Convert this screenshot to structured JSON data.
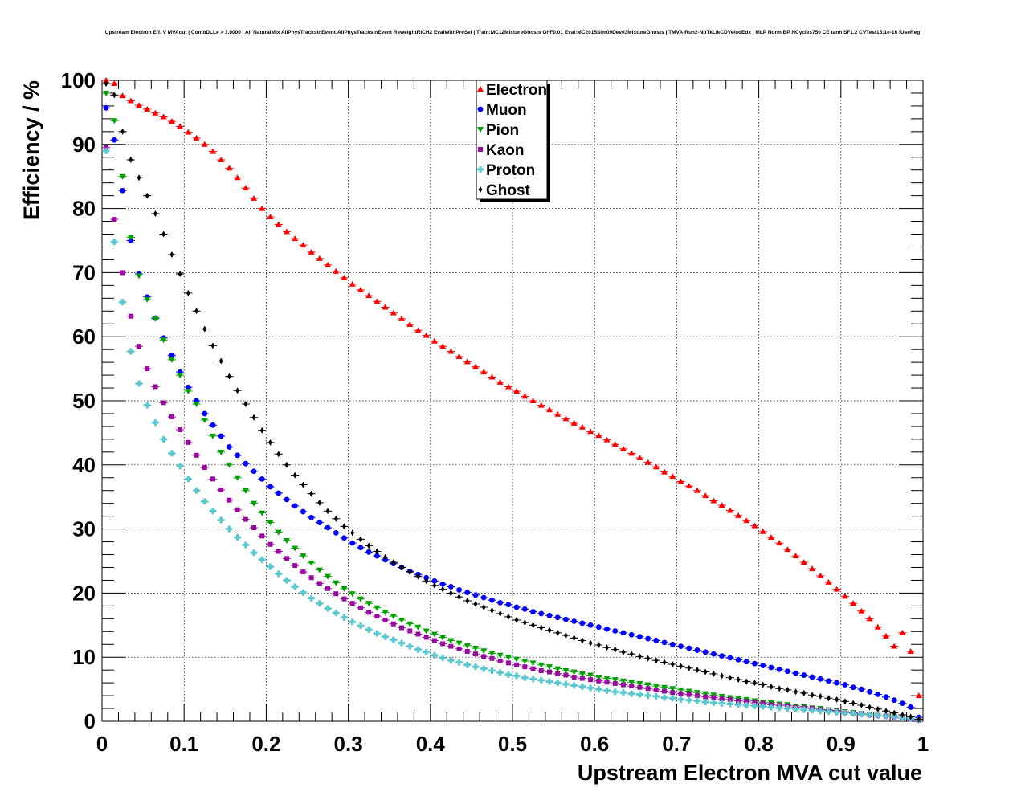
{
  "chart_data": {
    "type": "scatter",
    "title": "Upstream Electron Eff. V MVAcut | CombDLLe > 1.0000 | All NaturalMix AllPhysTracksInEvent:AllPhysTracksInEvent ReweightRICH2 EvalWithPreSel | Train:MC12MixtureGhosts GhF0.01 Eval:MC2015Sim09Dev03MixtureGhosts | TMVA-Run2-NoTkLikCDVelodEdx | MLP Norm BP NCycles750 CE tanh SF1.2 CVTest15:1e-16 !UseReg",
    "xlabel": "Upstream Electron MVA cut value",
    "ylabel": "Efficiency / %",
    "xlim": [
      0,
      1
    ],
    "ylim": [
      0,
      100
    ],
    "grid": true,
    "legend_position": "top-center",
    "x_ticks": [
      "0",
      "0.1",
      "0.2",
      "0.3",
      "0.4",
      "0.5",
      "0.6",
      "0.7",
      "0.8",
      "0.9",
      "1"
    ],
    "y_ticks": [
      "0",
      "10",
      "20",
      "30",
      "40",
      "50",
      "60",
      "70",
      "80",
      "90",
      "100"
    ],
    "x": [
      0.005,
      0.015,
      0.025,
      0.035,
      0.045,
      0.055,
      0.065,
      0.075,
      0.085,
      0.095,
      0.105,
      0.115,
      0.125,
      0.135,
      0.145,
      0.155,
      0.165,
      0.175,
      0.185,
      0.195,
      0.205,
      0.215,
      0.225,
      0.235,
      0.245,
      0.255,
      0.265,
      0.275,
      0.285,
      0.295,
      0.305,
      0.315,
      0.325,
      0.335,
      0.345,
      0.355,
      0.365,
      0.375,
      0.385,
      0.395,
      0.405,
      0.415,
      0.425,
      0.435,
      0.445,
      0.455,
      0.465,
      0.475,
      0.485,
      0.495,
      0.505,
      0.515,
      0.525,
      0.535,
      0.545,
      0.555,
      0.565,
      0.575,
      0.585,
      0.595,
      0.605,
      0.615,
      0.625,
      0.635,
      0.645,
      0.655,
      0.665,
      0.675,
      0.685,
      0.695,
      0.705,
      0.715,
      0.725,
      0.735,
      0.745,
      0.755,
      0.765,
      0.775,
      0.785,
      0.795,
      0.805,
      0.815,
      0.825,
      0.835,
      0.845,
      0.855,
      0.865,
      0.875,
      0.885,
      0.895,
      0.905,
      0.915,
      0.925,
      0.935,
      0.945,
      0.955,
      0.965,
      0.975,
      0.985,
      0.995
    ],
    "series": [
      {
        "name": "Electron",
        "color": "#ff0000",
        "marker": "triangle-up",
        "values": [
          100,
          99.5,
          97.6,
          96.8,
          96.1,
          95.5,
          94.9,
          94.3,
          93.6,
          92.8,
          91.9,
          91.0,
          90.0,
          88.9,
          87.6,
          86.3,
          84.8,
          83.2,
          81.6,
          80.0,
          78.7,
          77.5,
          76.4,
          75.3,
          74.3,
          73.2,
          72.2,
          71.2,
          70.2,
          69.2,
          68.2,
          67.3,
          66.4,
          65.5,
          64.6,
          63.7,
          62.8,
          61.9,
          61.0,
          60.2,
          59.3,
          58.5,
          57.7,
          56.9,
          56.1,
          55.3,
          54.5,
          53.7,
          52.9,
          52.2,
          51.5,
          50.7,
          50.0,
          49.3,
          48.6,
          47.9,
          47.2,
          46.5,
          45.9,
          45.2,
          44.6,
          43.9,
          43.2,
          42.5,
          41.8,
          41.1,
          40.4,
          39.7,
          38.9,
          38.2,
          37.4,
          36.7,
          36.0,
          35.2,
          34.4,
          33.7,
          32.9,
          32.1,
          31.3,
          30.5,
          29.6,
          28.7,
          27.8,
          26.8,
          25.8,
          24.8,
          23.8,
          22.7,
          21.7,
          20.6,
          19.5,
          18.4,
          17.2,
          16.0,
          14.7,
          13.3,
          11.7,
          13.8,
          10.9,
          4.0
        ]
      },
      {
        "name": "Muon",
        "color": "#0000ff",
        "marker": "circle",
        "values": [
          95.7,
          90.7,
          82.8,
          75.0,
          69.8,
          66.2,
          62.9,
          59.8,
          57.1,
          54.5,
          52.1,
          50.0,
          48.0,
          46.2,
          44.5,
          42.8,
          41.5,
          40.2,
          39.0,
          37.8,
          36.6,
          35.6,
          34.6,
          33.6,
          32.7,
          31.8,
          31.0,
          30.2,
          29.4,
          28.6,
          27.8,
          27.1,
          26.4,
          25.8,
          25.2,
          24.6,
          24.0,
          23.4,
          22.9,
          22.4,
          21.9,
          21.4,
          21.0,
          20.5,
          20.1,
          19.7,
          19.3,
          18.9,
          18.5,
          18.2,
          17.8,
          17.5,
          17.1,
          16.8,
          16.5,
          16.2,
          15.9,
          15.6,
          15.3,
          15.0,
          14.7,
          14.4,
          14.1,
          13.8,
          13.5,
          13.2,
          12.9,
          12.6,
          12.3,
          12.0,
          11.7,
          11.4,
          11.1,
          10.8,
          10.5,
          10.2,
          9.9,
          9.6,
          9.3,
          9.0,
          8.7,
          8.4,
          8.1,
          7.8,
          7.5,
          7.2,
          6.9,
          6.6,
          6.3,
          6.0,
          5.7,
          5.3,
          5.0,
          4.6,
          4.2,
          3.8,
          3.3,
          2.8,
          2.2,
          0.6
        ]
      },
      {
        "name": "Pion",
        "color": "#00a000",
        "marker": "triangle-down",
        "values": [
          98.0,
          93.7,
          85.0,
          75.5,
          69.5,
          65.8,
          62.8,
          59.5,
          56.4,
          54.0,
          51.5,
          49.5,
          47.0,
          44.5,
          42.0,
          40.0,
          38.0,
          36.0,
          34.0,
          32.5,
          31.0,
          29.5,
          28.2,
          27.0,
          25.8,
          24.7,
          23.6,
          22.6,
          21.6,
          20.7,
          19.9,
          19.1,
          18.4,
          17.7,
          17.0,
          16.4,
          15.8,
          15.2,
          14.7,
          14.1,
          13.6,
          13.1,
          12.6,
          12.2,
          11.8,
          11.4,
          11.0,
          10.6,
          10.3,
          10.0,
          9.7,
          9.4,
          9.1,
          8.8,
          8.5,
          8.2,
          7.9,
          7.7,
          7.4,
          7.2,
          6.9,
          6.7,
          6.5,
          6.3,
          6.1,
          5.9,
          5.7,
          5.5,
          5.3,
          5.1,
          4.9,
          4.7,
          4.5,
          4.3,
          4.1,
          3.9,
          3.7,
          3.6,
          3.4,
          3.2,
          3.0,
          2.9,
          2.7,
          2.6,
          2.4,
          2.3,
          2.1,
          2.0,
          1.8,
          1.7,
          1.5,
          1.4,
          1.2,
          1.1,
          0.9,
          0.8,
          0.7,
          0.5,
          0.4,
          0.2
        ]
      },
      {
        "name": "Kaon",
        "color": "#9a0aa0",
        "marker": "square",
        "values": [
          89.5,
          78.3,
          70.0,
          63.2,
          58.5,
          55.0,
          52.2,
          49.7,
          47.5,
          45.5,
          43.5,
          41.5,
          39.6,
          37.8,
          36.1,
          34.5,
          33.0,
          31.5,
          30.2,
          28.9,
          27.6,
          26.5,
          25.4,
          24.3,
          23.3,
          22.4,
          21.5,
          20.7,
          19.9,
          19.1,
          18.4,
          17.7,
          17.0,
          16.4,
          15.8,
          15.2,
          14.6,
          14.1,
          13.6,
          13.1,
          12.6,
          12.1,
          11.7,
          11.3,
          10.9,
          10.5,
          10.1,
          9.8,
          9.4,
          9.1,
          8.8,
          8.5,
          8.2,
          7.9,
          7.7,
          7.4,
          7.2,
          6.9,
          6.7,
          6.5,
          6.3,
          6.1,
          5.9,
          5.7,
          5.5,
          5.3,
          5.1,
          4.9,
          4.7,
          4.5,
          4.3,
          4.2,
          4.0,
          3.8,
          3.7,
          3.5,
          3.4,
          3.2,
          3.1,
          2.9,
          2.8,
          2.6,
          2.5,
          2.4,
          2.2,
          2.1,
          2.0,
          1.8,
          1.7,
          1.6,
          1.4,
          1.3,
          1.2,
          1.0,
          0.9,
          0.8,
          0.6,
          0.5,
          0.3,
          0.2
        ]
      },
      {
        "name": "Proton",
        "color": "#5bc8d0",
        "marker": "cross",
        "values": [
          89.0,
          74.8,
          65.4,
          57.7,
          52.7,
          49.3,
          46.6,
          44.0,
          41.8,
          39.8,
          37.8,
          36.0,
          34.3,
          32.8,
          31.4,
          30.0,
          28.7,
          27.5,
          26.3,
          25.2,
          24.1,
          23.0,
          22.0,
          21.0,
          20.1,
          19.2,
          18.4,
          17.6,
          16.9,
          16.2,
          15.5,
          14.9,
          14.3,
          13.7,
          13.2,
          12.7,
          12.2,
          11.7,
          11.2,
          10.8,
          10.3,
          9.9,
          9.5,
          9.2,
          8.8,
          8.5,
          8.2,
          7.9,
          7.6,
          7.3,
          7.1,
          6.8,
          6.6,
          6.4,
          6.2,
          6.0,
          5.8,
          5.6,
          5.4,
          5.2,
          5.0,
          4.8,
          4.6,
          4.5,
          4.3,
          4.2,
          4.0,
          3.9,
          3.7,
          3.6,
          3.4,
          3.3,
          3.2,
          3.0,
          2.9,
          2.8,
          2.7,
          2.6,
          2.5,
          2.4,
          2.3,
          2.2,
          2.1,
          2.0,
          1.9,
          1.8,
          1.7,
          1.6,
          1.5,
          1.4,
          1.3,
          1.2,
          1.1,
          1.0,
          0.9,
          0.8,
          0.7,
          0.5,
          0.4,
          0.2
        ]
      },
      {
        "name": "Ghost",
        "color": "#000000",
        "marker": "diamond",
        "values": [
          99.5,
          97.7,
          92.0,
          87.6,
          84.8,
          82.0,
          79.2,
          76.0,
          72.8,
          69.8,
          66.8,
          64.0,
          61.2,
          58.6,
          56.2,
          53.8,
          51.6,
          49.5,
          47.4,
          45.4,
          43.5,
          41.7,
          40.0,
          38.4,
          36.9,
          35.5,
          34.1,
          32.8,
          31.6,
          30.4,
          29.4,
          28.4,
          27.4,
          26.5,
          25.6,
          24.8,
          24.0,
          23.3,
          22.6,
          21.9,
          21.2,
          20.6,
          20.0,
          19.4,
          18.8,
          18.3,
          17.8,
          17.3,
          16.8,
          16.3,
          15.8,
          15.4,
          15.0,
          14.6,
          14.2,
          13.8,
          13.4,
          13.0,
          12.6,
          12.2,
          11.9,
          11.5,
          11.2,
          10.8,
          10.5,
          10.1,
          9.8,
          9.5,
          9.2,
          8.9,
          8.6,
          8.3,
          8.0,
          7.7,
          7.4,
          7.1,
          6.8,
          6.5,
          6.2,
          6.0,
          5.7,
          5.4,
          5.1,
          4.9,
          4.6,
          4.4,
          4.1,
          3.9,
          3.6,
          3.4,
          3.1,
          2.8,
          2.5,
          2.2,
          1.9,
          1.6,
          1.3,
          1.0,
          0.7,
          0.3
        ]
      }
    ]
  }
}
